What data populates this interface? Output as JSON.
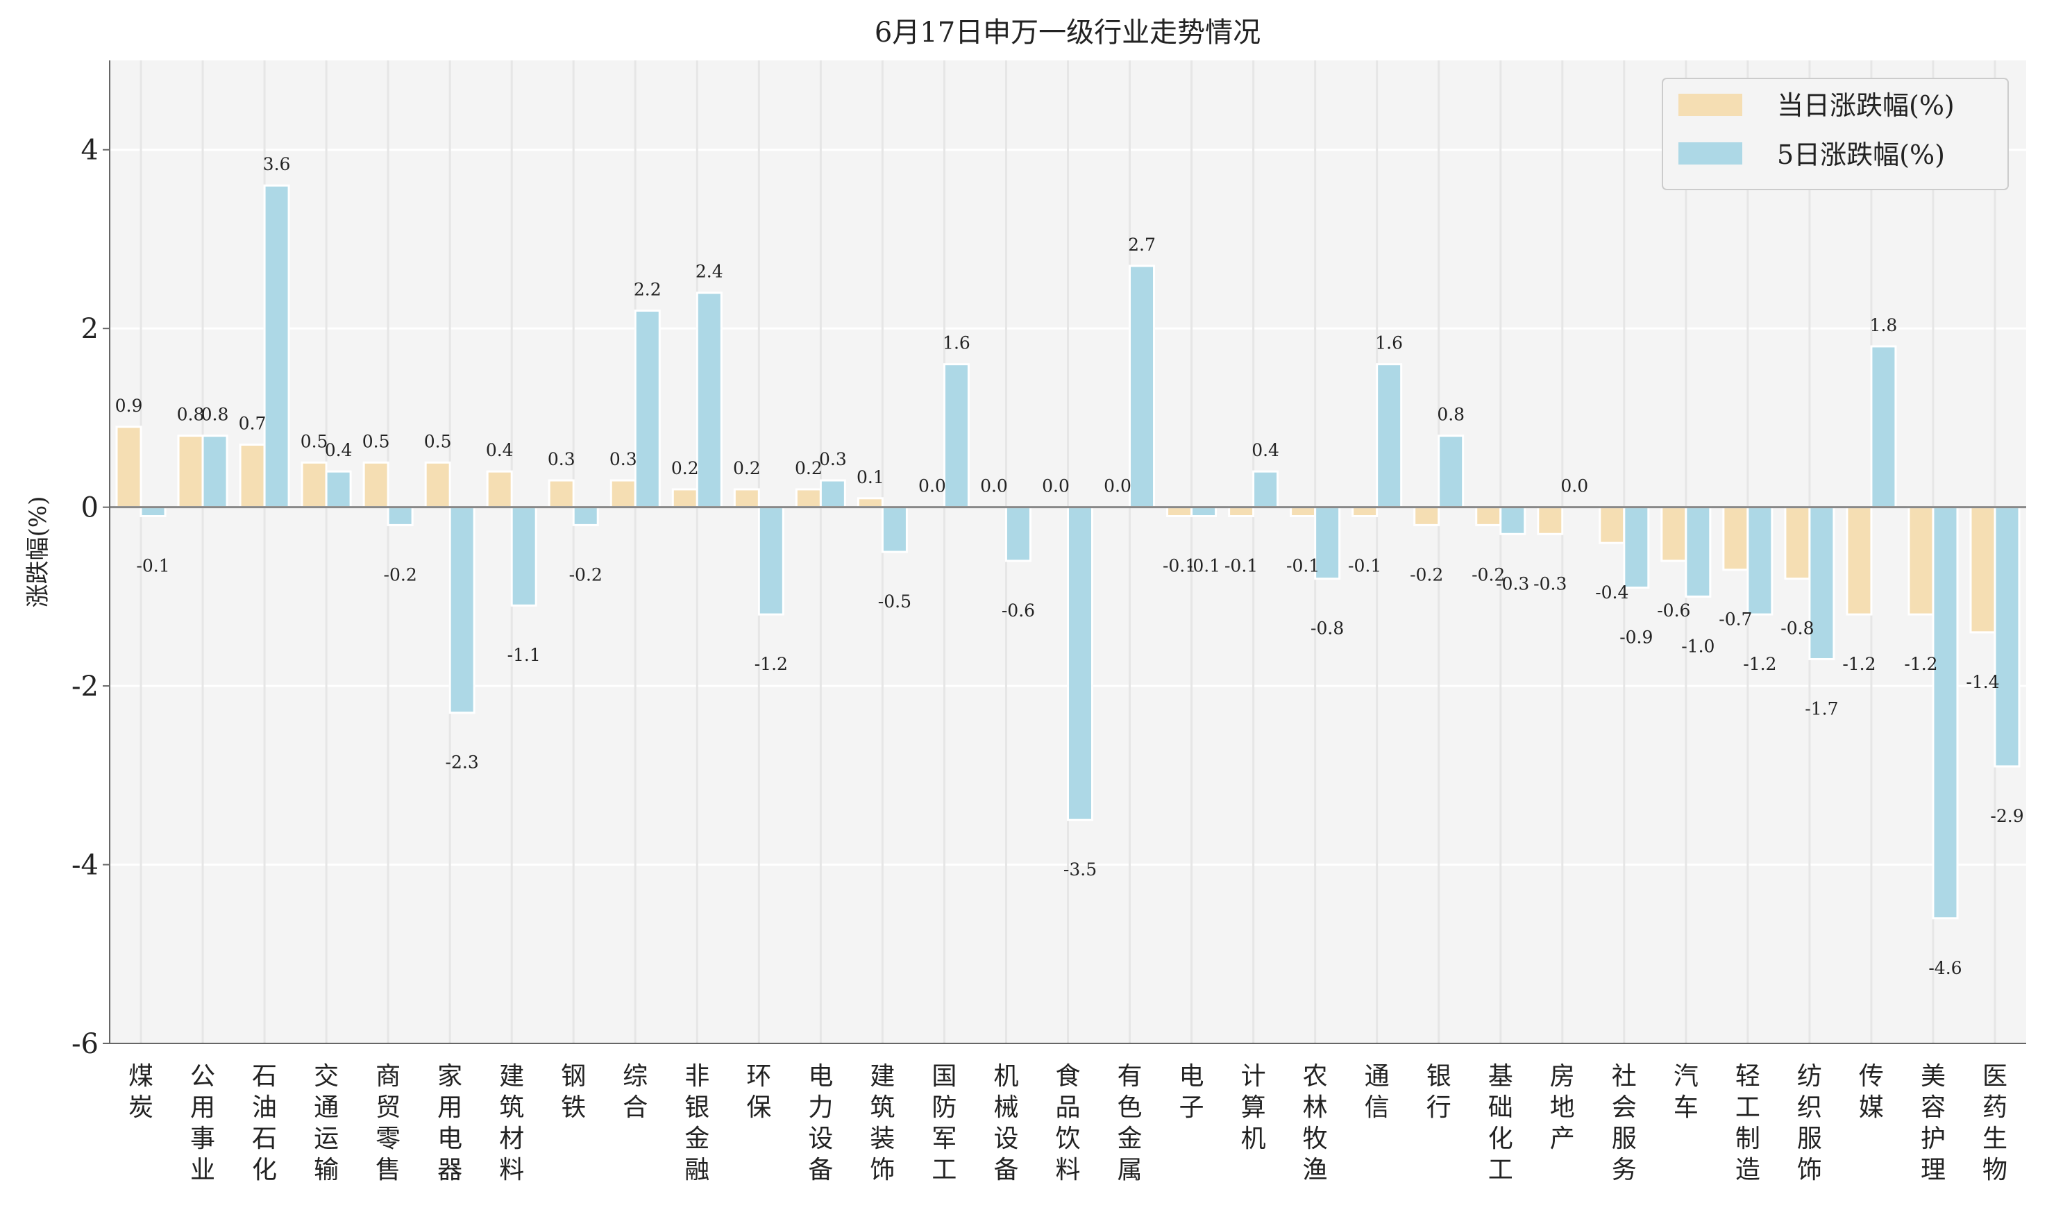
{
  "chart_data": {
    "type": "bar",
    "title": "6月17日申万一级行业走势情况",
    "xlabel": "",
    "ylabel": "涨跌幅(%)",
    "ylim": [
      -6,
      5
    ],
    "yticks": [
      -6,
      -4,
      -2,
      0,
      2,
      4
    ],
    "grid": true,
    "legend_position": "top-right",
    "categories": [
      "煤炭",
      "公用事业",
      "石油石化",
      "交通运输",
      "商贸零售",
      "家用电器",
      "建筑材料",
      "钢铁",
      "综合",
      "非银金融",
      "环保",
      "电力设备",
      "建筑装饰",
      "国防军工",
      "机械设备",
      "食品饮料",
      "有色金属",
      "电子",
      "计算机",
      "农林牧渔",
      "通信",
      "银行",
      "基础化工",
      "房地产",
      "社会服务",
      "汽车",
      "轻工制造",
      "纺织服饰",
      "传媒",
      "美容护理",
      "医药生物"
    ],
    "series": [
      {
        "name": "当日涨跌幅(%)",
        "color": "#f5deb3",
        "values": [
          0.9,
          0.8,
          0.7,
          0.5,
          0.5,
          0.5,
          0.4,
          0.3,
          0.3,
          0.2,
          0.2,
          0.2,
          0.1,
          0.0,
          0.0,
          0.0,
          0.0,
          -0.1,
          -0.1,
          -0.1,
          -0.1,
          -0.2,
          -0.2,
          -0.3,
          -0.4,
          -0.6,
          -0.7,
          -0.8,
          -1.2,
          -1.2,
          -1.4
        ]
      },
      {
        "name": "5日涨跌幅(%)",
        "color": "#add8e6",
        "values": [
          -0.1,
          0.8,
          3.6,
          0.4,
          -0.2,
          -2.3,
          -1.1,
          -0.2,
          2.2,
          2.4,
          -1.2,
          0.3,
          -0.5,
          1.6,
          -0.6,
          -3.5,
          2.7,
          -0.1,
          0.4,
          -0.8,
          1.6,
          0.8,
          -0.3,
          0.0,
          -0.9,
          -1.0,
          -1.2,
          -1.7,
          1.8,
          -4.6,
          -2.9
        ]
      }
    ]
  }
}
